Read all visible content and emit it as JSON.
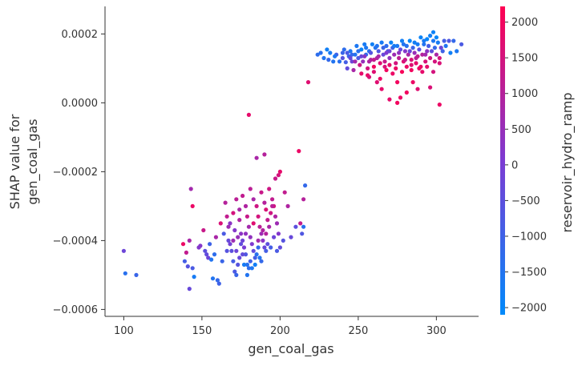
{
  "chart_data": {
    "type": "scatter",
    "title": "",
    "xlabel": "gen_coal_gas",
    "ylabel_lines": [
      "SHAP value for",
      "gen_coal_gas"
    ],
    "xlim": [
      88,
      327
    ],
    "ylim": [
      -0.00062,
      0.00028
    ],
    "x_ticks": [
      {
        "value": 100,
        "label": "100"
      },
      {
        "value": 150,
        "label": "150"
      },
      {
        "value": 200,
        "label": "200"
      },
      {
        "value": 250,
        "label": "250"
      },
      {
        "value": 300,
        "label": "300"
      }
    ],
    "y_ticks": [
      {
        "value": 0.0002,
        "label": "0.0002"
      },
      {
        "value": 0.0,
        "label": "0.0000"
      },
      {
        "value": -0.0002,
        "label": "−0.0002"
      },
      {
        "value": -0.0004,
        "label": "−0.0004"
      },
      {
        "value": -0.0006,
        "label": "−0.0006"
      }
    ],
    "colorbar": {
      "label": "reservoir_hydro_ramp",
      "min": -2100,
      "max": 2220,
      "ticks": [
        {
          "value": 2000,
          "label": "2000"
        },
        {
          "value": 1500,
          "label": "1500"
        },
        {
          "value": 1000,
          "label": "1000"
        },
        {
          "value": 500,
          "label": "500"
        },
        {
          "value": 0,
          "label": "0"
        },
        {
          "value": -500,
          "label": "−500"
        },
        {
          "value": -1000,
          "label": "−1000"
        },
        {
          "value": -1500,
          "label": "−1500"
        },
        {
          "value": -2000,
          "label": "−2000"
        }
      ],
      "colors": {
        "low": "#008afb",
        "mid": "#7c3bd3",
        "high": "#ff0052"
      }
    },
    "points": [
      [
        100,
        -0.00043,
        -200
      ],
      [
        101,
        -0.000495,
        -1400
      ],
      [
        108,
        -0.0005,
        -1100
      ],
      [
        138,
        -0.00041,
        1900
      ],
      [
        140,
        -0.000435,
        1200
      ],
      [
        139,
        -0.00046,
        -900
      ],
      [
        141,
        -0.000475,
        -600
      ],
      [
        142,
        -0.0004,
        800
      ],
      [
        142,
        -0.00054,
        -300
      ],
      [
        143,
        -0.00025,
        700
      ],
      [
        144,
        -0.0003,
        1900
      ],
      [
        144,
        -0.00048,
        -800
      ],
      [
        145,
        -0.000505,
        -1700
      ],
      [
        149,
        -0.000415,
        200
      ],
      [
        151,
        -0.00037,
        1300
      ],
      [
        153,
        -0.00044,
        -400
      ],
      [
        154,
        -0.00045,
        -200
      ],
      [
        156,
        -0.000455,
        -1500
      ],
      [
        157,
        -0.00051,
        -1500
      ],
      [
        160,
        -0.000515,
        -1200
      ],
      [
        161,
        -0.000525,
        -1000
      ],
      [
        159,
        -0.00039,
        800
      ],
      [
        162,
        -0.00035,
        1600
      ],
      [
        165,
        -0.00029,
        1000
      ],
      [
        166,
        -0.00033,
        1200
      ],
      [
        167,
        -0.00036,
        600
      ],
      [
        168,
        -0.00041,
        -100
      ],
      [
        169,
        -0.00043,
        -500
      ],
      [
        170,
        -0.00046,
        -900
      ],
      [
        171,
        -0.00049,
        -800
      ],
      [
        172,
        -0.0005,
        -1100
      ],
      [
        173,
        -0.00047,
        -600
      ],
      [
        174,
        -0.00045,
        -300
      ],
      [
        170,
        -0.00032,
        1500
      ],
      [
        172,
        -0.00028,
        1100
      ],
      [
        174,
        -0.00034,
        900
      ],
      [
        175,
        -0.00038,
        300
      ],
      [
        176,
        -0.0004,
        -200
      ],
      [
        177,
        -0.00042,
        0
      ],
      [
        178,
        -0.00044,
        -700
      ],
      [
        179,
        -0.00047,
        -1400
      ],
      [
        180,
        -0.00048,
        -1300
      ],
      [
        181,
        -0.00046,
        -1000
      ],
      [
        176,
        -0.00027,
        1200
      ],
      [
        178,
        -0.0003,
        900
      ],
      [
        179,
        -0.00033,
        1300
      ],
      [
        180,
        -0.00036,
        700
      ],
      [
        181,
        -0.00039,
        400
      ],
      [
        182,
        -0.00041,
        100
      ],
      [
        183,
        -0.00043,
        -400
      ],
      [
        184,
        -0.00045,
        -900
      ],
      [
        185,
        -0.00044,
        -1400
      ],
      [
        186,
        -0.00042,
        -1200
      ],
      [
        180,
        -3.5e-05,
        1800
      ],
      [
        181,
        -0.00025,
        1100
      ],
      [
        183,
        -0.00028,
        800
      ],
      [
        185,
        -0.0003,
        1400
      ],
      [
        186,
        -0.00033,
        1500
      ],
      [
        187,
        -0.00036,
        1100
      ],
      [
        188,
        -0.00038,
        600
      ],
      [
        189,
        -0.0004,
        300
      ],
      [
        190,
        -0.00042,
        -300
      ],
      [
        191,
        -0.00043,
        -900
      ],
      [
        188,
        -0.00026,
        1300
      ],
      [
        190,
        -0.00029,
        1000
      ],
      [
        191,
        -0.00031,
        1600
      ],
      [
        192,
        -0.00034,
        1200
      ],
      [
        193,
        -0.00036,
        800
      ],
      [
        190,
        -0.00015,
        1000
      ],
      [
        185,
        -0.00016,
        800
      ],
      [
        193,
        -0.00025,
        1400
      ],
      [
        195,
        -0.00028,
        1200
      ],
      [
        196,
        -0.0003,
        1500
      ],
      [
        197,
        -0.00033,
        900
      ],
      [
        198,
        -0.00035,
        600
      ],
      [
        199,
        -0.00038,
        200
      ],
      [
        200,
        -0.0002,
        1800
      ],
      [
        199,
        -0.00021,
        1500
      ],
      [
        197,
        -0.00022,
        1300
      ],
      [
        195,
        -0.0003,
        1100
      ],
      [
        194,
        -0.00032,
        1400
      ],
      [
        203,
        -0.00026,
        1200
      ],
      [
        205,
        -0.0003,
        900
      ],
      [
        207,
        -0.00039,
        -300
      ],
      [
        202,
        -0.0004,
        -600
      ],
      [
        200,
        -0.00042,
        -400
      ],
      [
        198,
        -0.00043,
        -800
      ],
      [
        210,
        -0.00036,
        -500
      ],
      [
        212,
        -0.00014,
        1900
      ],
      [
        213,
        -0.00035,
        1200
      ],
      [
        214,
        -0.00038,
        -700
      ],
      [
        215,
        -0.00036,
        -1400
      ],
      [
        215,
        -0.00028,
        1000
      ],
      [
        216,
        -0.00024,
        -1200
      ],
      [
        218,
        6e-05,
        1700
      ],
      [
        148,
        -0.00042,
        200
      ],
      [
        152,
        -0.00043,
        -500
      ],
      [
        155,
        -0.00041,
        -1000
      ],
      [
        158,
        -0.00044,
        -1300
      ],
      [
        164,
        -0.00038,
        -800
      ],
      [
        167,
        -0.0004,
        -300
      ],
      [
        166,
        -0.00043,
        -600
      ],
      [
        163,
        -0.00046,
        -1100
      ],
      [
        171,
        -0.00037,
        200
      ],
      [
        173,
        -0.00039,
        500
      ],
      [
        175,
        -0.00041,
        -400
      ],
      [
        177,
        -0.00047,
        -1700
      ],
      [
        179,
        -0.0005,
        -1500
      ],
      [
        182,
        -0.00048,
        -1600
      ],
      [
        184,
        -0.00047,
        -1800
      ],
      [
        187,
        -0.00045,
        -1500
      ],
      [
        188,
        -0.00046,
        -1200
      ],
      [
        192,
        -0.00041,
        -500
      ],
      [
        194,
        -0.00042,
        -900
      ],
      [
        196,
        -0.00039,
        -200
      ],
      [
        183,
        -0.00035,
        1700
      ],
      [
        186,
        -0.0004,
        700
      ],
      [
        189,
        -0.00037,
        900
      ],
      [
        191,
        -0.00038,
        1000
      ],
      [
        174,
        -0.00031,
        800
      ],
      [
        168,
        -0.00035,
        300
      ],
      [
        172,
        -0.00043,
        -200
      ],
      [
        176,
        -0.00044,
        -400
      ],
      [
        178,
        -0.00038,
        400
      ],
      [
        170,
        -0.0004,
        600
      ],
      [
        224,
        0.00014,
        -1300
      ],
      [
        226,
        0.000145,
        -1400
      ],
      [
        228,
        0.00013,
        -1500
      ],
      [
        230,
        0.000155,
        -1800
      ],
      [
        232,
        0.000145,
        -1700
      ],
      [
        234,
        0.00012,
        -1500
      ],
      [
        236,
        0.00014,
        -1000
      ],
      [
        238,
        0.00012,
        -1400
      ],
      [
        240,
        0.00013,
        -600
      ],
      [
        241,
        0.000155,
        -1300
      ],
      [
        242,
        0.000118,
        -900
      ],
      [
        243,
        0.0001,
        -400
      ],
      [
        244,
        0.000135,
        -1100
      ],
      [
        245,
        0.00015,
        -1600
      ],
      [
        246,
        0.00012,
        -200
      ],
      [
        247,
        9.5e-05,
        800
      ],
      [
        248,
        0.00014,
        -1500
      ],
      [
        249,
        0.000165,
        -1600
      ],
      [
        250,
        0.00013,
        -800
      ],
      [
        251,
        0.00011,
        1400
      ],
      [
        252,
        8.5e-05,
        1800
      ],
      [
        252,
        0.000155,
        -1900
      ],
      [
        253,
        0.00012,
        500
      ],
      [
        254,
        0.00017,
        -1700
      ],
      [
        255,
        0.00014,
        -1200
      ],
      [
        256,
        0.0001,
        1500
      ],
      [
        256,
        8e-05,
        1900
      ],
      [
        257,
        0.00015,
        -1400
      ],
      [
        258,
        0.000125,
        1000
      ],
      [
        259,
        0.00017,
        -1800
      ],
      [
        260,
        0.000105,
        2000
      ],
      [
        260,
        9e-05,
        1700
      ],
      [
        261,
        0.00016,
        -1500
      ],
      [
        262,
        0.00013,
        900
      ],
      [
        263,
        0.00015,
        -700
      ],
      [
        264,
        0.000115,
        1700
      ],
      [
        264,
        7e-05,
        1900
      ],
      [
        265,
        0.000175,
        -1700
      ],
      [
        266,
        0.00014,
        -300
      ],
      [
        267,
        0.00012,
        1300
      ],
      [
        268,
        9.5e-05,
        2000
      ],
      [
        268,
        0.000165,
        -1300
      ],
      [
        269,
        0.00015,
        -900
      ],
      [
        270,
        0.00011,
        1800
      ],
      [
        270,
        0.00013,
        400
      ],
      [
        271,
        0.000175,
        -1900
      ],
      [
        272,
        0.00016,
        -1000
      ],
      [
        272,
        8.5e-05,
        1900
      ],
      [
        273,
        0.00014,
        600
      ],
      [
        274,
        0.000115,
        1500
      ],
      [
        275,
        0.000165,
        -1600
      ],
      [
        275,
        6e-05,
        2000
      ],
      [
        276,
        0.00013,
        1100
      ],
      [
        277,
        0.000155,
        -400
      ],
      [
        278,
        9e-05,
        2100
      ],
      [
        278,
        0.00018,
        -1800
      ],
      [
        279,
        0.00012,
        1700
      ],
      [
        280,
        0.00015,
        200
      ],
      [
        281,
        0.000105,
        1900
      ],
      [
        281,
        0.000165,
        -1400
      ],
      [
        282,
        0.00014,
        800
      ],
      [
        283,
        0.00018,
        -2000
      ],
      [
        284,
        0.000125,
        1600
      ],
      [
        284,
        9.5e-05,
        2000
      ],
      [
        285,
        0.00016,
        -1100
      ],
      [
        286,
        0.000145,
        500
      ],
      [
        287,
        0.000115,
        1800
      ],
      [
        288,
        0.00017,
        -1700
      ],
      [
        288,
        0.000135,
        1200
      ],
      [
        289,
        0.000155,
        -600
      ],
      [
        290,
        0.000105,
        1900
      ],
      [
        290,
        0.00019,
        -1900
      ],
      [
        291,
        0.00014,
        1000
      ],
      [
        292,
        0.00017,
        -1500
      ],
      [
        293,
        0.00012,
        1600
      ],
      [
        294,
        0.000185,
        -2000
      ],
      [
        294,
        0.00015,
        300
      ],
      [
        295,
        0.000165,
        -900
      ],
      [
        296,
        0.000195,
        -1800
      ],
      [
        296,
        0.00013,
        1400
      ],
      [
        297,
        0.00015,
        -500
      ],
      [
        298,
        0.00018,
        -1600
      ],
      [
        298,
        0.000205,
        -1900
      ],
      [
        299,
        0.00016,
        -1200
      ],
      [
        300,
        0.00014,
        800
      ],
      [
        301,
        0.000175,
        -1700
      ],
      [
        302,
        -5e-06,
        1900
      ],
      [
        302,
        0.00013,
        1500
      ],
      [
        303,
        0.00016,
        -200
      ],
      [
        304,
        0.00015,
        -1000
      ],
      [
        305,
        0.00018,
        -900
      ],
      [
        306,
        0.000165,
        -1500
      ],
      [
        308,
        0.00018,
        -700
      ],
      [
        309,
        0.000145,
        -1800
      ],
      [
        311,
        0.00018,
        -1200
      ],
      [
        313,
        0.00015,
        -1600
      ],
      [
        316,
        0.00017,
        -800
      ],
      [
        281,
        3e-05,
        2000
      ],
      [
        275,
        0.0,
        2000
      ],
      [
        270,
        1e-05,
        1800
      ],
      [
        277,
        1.5e-05,
        1900
      ],
      [
        288,
        4e-05,
        1700
      ],
      [
        296,
        4.5e-05,
        1600
      ],
      [
        285,
        6e-05,
        1900
      ],
      [
        265,
        4e-05,
        1800
      ],
      [
        262,
        6e-05,
        1700
      ],
      [
        257,
        7.5e-05,
        1600
      ],
      [
        284,
        0.00011,
        1700
      ],
      [
        291,
        9e-05,
        1800
      ],
      [
        298,
        9e-05,
        1500
      ],
      [
        268,
        0.000145,
        100
      ],
      [
        262,
        0.000165,
        -1500
      ],
      [
        258,
        0.000145,
        -600
      ],
      [
        254,
        0.000135,
        300
      ],
      [
        250,
        0.00015,
        -1400
      ],
      [
        246,
        0.00014,
        -1200
      ],
      [
        243,
        0.000145,
        -800
      ],
      [
        266,
        0.00016,
        -1100
      ],
      [
        273,
        0.000165,
        -1700
      ],
      [
        279,
        0.00017,
        -1500
      ],
      [
        286,
        0.000175,
        -1800
      ],
      [
        292,
        0.00018,
        -1700
      ],
      [
        300,
        0.00019,
        -2000
      ],
      [
        255,
        0.00016,
        -1600
      ],
      [
        248,
        0.00012,
        700
      ],
      [
        260,
        0.000125,
        1200
      ],
      [
        267,
        0.000105,
        1600
      ],
      [
        274,
        0.0001,
        1900
      ],
      [
        280,
        0.000125,
        1300
      ],
      [
        287,
        0.00013,
        1100
      ],
      [
        293,
        0.00014,
        700
      ],
      [
        299,
        0.00012,
        1500
      ],
      [
        283,
        0.00015,
        -300
      ],
      [
        276,
        0.000145,
        400
      ],
      [
        270,
        0.00015,
        -200
      ],
      [
        263,
        0.000135,
        800
      ],
      [
        257,
        0.00012,
        900
      ],
      [
        252,
        0.000135,
        -200
      ],
      [
        245,
        0.00013,
        -300
      ],
      [
        240,
        0.000145,
        -1100
      ],
      [
        235,
        0.000135,
        -1600
      ],
      [
        231,
        0.000125,
        -1200
      ],
      [
        289,
        0.0001,
        1900
      ],
      [
        294,
        0.000105,
        1800
      ],
      [
        302,
        0.000115,
        1600
      ]
    ]
  }
}
